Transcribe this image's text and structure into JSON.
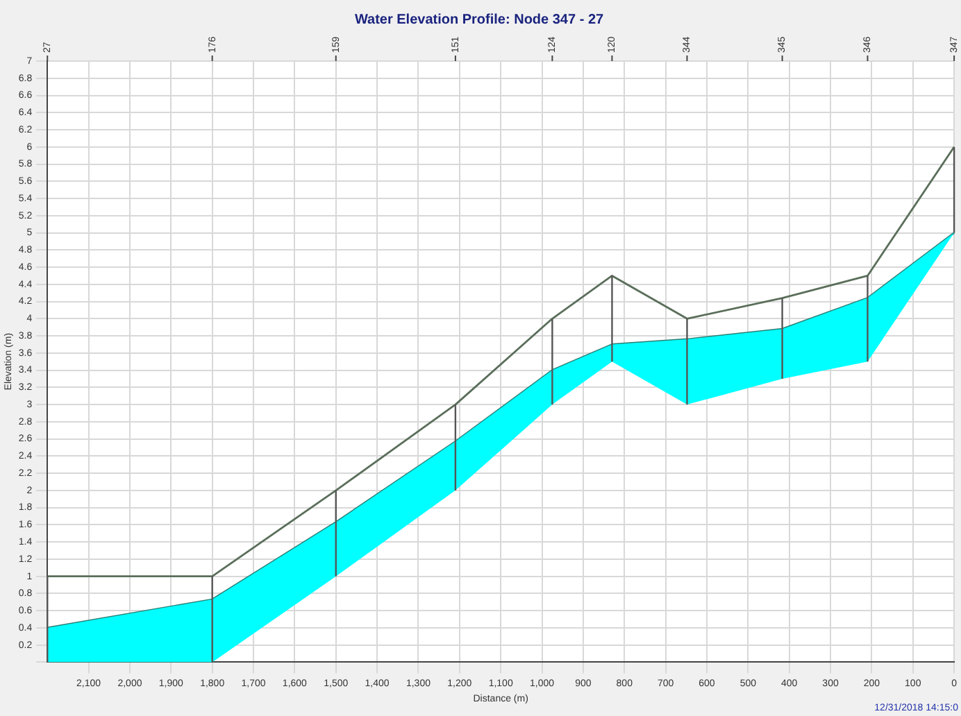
{
  "chart_data": {
    "type": "line",
    "title": "Water Elevation Profile: Node 347 - 27",
    "xlabel": "Distance (m)",
    "ylabel": "Elevation (m)",
    "x": [
      2200,
      1800,
      1500,
      1210,
      975,
      830,
      648,
      417,
      210,
      0
    ],
    "series": [
      {
        "type": "line",
        "color": "#2a7f75",
        "values": [
          0.4,
          0.73,
          1.63,
          2.57,
          3.4,
          3.7,
          3.76,
          3.88,
          4.24,
          5.0
        ],
        "lower": [
          0,
          0,
          1.0,
          2.0,
          3.0,
          3.5,
          3.0,
          3.3,
          3.5,
          5.0
        ],
        "upper": [
          0.4,
          0.73,
          1.63,
          2.57,
          3.4,
          3.7,
          3.76,
          3.88,
          4.24,
          5.0
        ]
      },
      {
        "type": "line",
        "color": "#5a6e5a",
        "values": [
          1.0,
          1.0,
          2.0,
          3.0,
          4.0,
          4.5,
          4.0,
          4.24,
          4.5,
          6.0
        ]
      }
    ],
    "xlim": [
      2200,
      0
    ],
    "xticks": [
      {
        "value": 2100,
        "label": "2,100"
      },
      {
        "value": 2000,
        "label": "2,000"
      },
      {
        "value": 1900,
        "label": "1,900"
      },
      {
        "value": 1800,
        "label": "1,800"
      },
      {
        "value": 1700,
        "label": "1,700"
      },
      {
        "value": 1600,
        "label": "1,600"
      },
      {
        "value": 1500,
        "label": "1,500"
      },
      {
        "value": 1400,
        "label": "1,400"
      },
      {
        "value": 1300,
        "label": "1,300"
      },
      {
        "value": 1200,
        "label": "1,200"
      },
      {
        "value": 1100,
        "label": "1,100"
      },
      {
        "value": 1000,
        "label": "1,000"
      },
      900,
      800,
      700,
      600,
      500,
      400,
      300,
      200,
      100,
      0
    ],
    "ylim": [
      0,
      7
    ],
    "yticks": [
      {
        "value": 0,
        "label": null
      },
      0.2,
      0.4,
      0.6,
      0.8,
      1,
      1.2,
      1.4,
      1.6,
      1.8,
      2,
      2.2,
      2.4,
      2.6,
      2.8,
      3,
      3.2,
      3.4,
      3.6,
      3.8,
      4,
      4.2,
      4.4,
      4.6,
      4.8,
      5,
      5.2,
      5.4,
      5.6,
      5.8,
      6,
      6.2,
      6.4,
      6.6,
      6.8,
      7
    ],
    "grid": true,
    "marker": "none",
    "line_style": "solid",
    "legend": false,
    "ref_lines": [
      {
        "axis": "x",
        "value": 2200,
        "color": "#555555"
      },
      {
        "axis": "x",
        "value": 1800,
        "color": "#555555"
      },
      {
        "axis": "x",
        "value": 1500,
        "color": "#555555"
      },
      {
        "axis": "x",
        "value": 1210,
        "color": "#555555"
      },
      {
        "axis": "x",
        "value": 975,
        "color": "#555555"
      },
      {
        "axis": "x",
        "value": 830,
        "color": "#555555"
      },
      {
        "axis": "x",
        "value": 648,
        "color": "#555555"
      },
      {
        "axis": "x",
        "value": 417,
        "color": "#555555"
      },
      {
        "axis": "x",
        "value": 210,
        "color": "#555555"
      },
      {
        "axis": "x",
        "value": 0,
        "color": "#555555"
      }
    ],
    "annotations": [
      "27",
      "176",
      "159",
      "151",
      "124",
      "120",
      "344",
      "345",
      "346",
      "347",
      "12/31/2018 14:15:0"
    ]
  }
}
